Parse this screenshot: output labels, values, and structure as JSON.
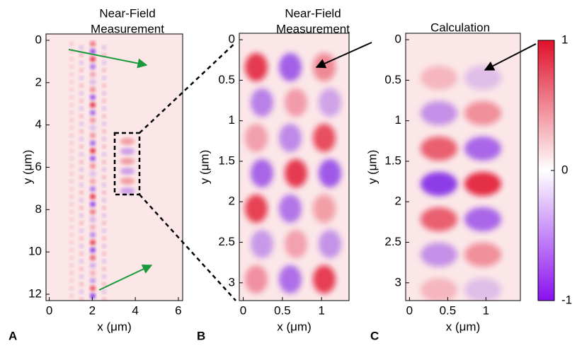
{
  "chart_data": [
    {
      "type": "heatmap",
      "panel": "A",
      "title": [
        "Near-Field",
        "Measurement"
      ],
      "x_label": "x (μm)",
      "y_label": "y (μm)",
      "xlim": [
        -0.15,
        6.2
      ],
      "ylim": [
        -0.3,
        12.3
      ],
      "xticks": [
        0,
        2,
        4,
        6
      ],
      "yticks": [
        0,
        2,
        4,
        6,
        8,
        10,
        12
      ]
    },
    {
      "type": "heatmap",
      "panel": "B",
      "title": [
        "Near-Field",
        "Measurement"
      ],
      "x_label": "x (μm)",
      "y_label": "y (μm)",
      "xlim": [
        -0.05,
        1.35
      ],
      "ylim": [
        -0.08,
        3.22
      ],
      "xticks": [
        0,
        0.5,
        1
      ],
      "yticks": [
        0,
        0.5,
        1,
        1.5,
        2,
        2.5,
        3
      ]
    },
    {
      "type": "heatmap",
      "panel": "C",
      "title": [
        "Calculation"
      ],
      "x_label": "x (μm)",
      "y_label": "y (μm)",
      "xlim": [
        -0.05,
        1.45
      ],
      "ylim": [
        -0.08,
        3.22
      ],
      "xticks": [
        0,
        0.5,
        1
      ],
      "yticks": [
        0,
        0.5,
        1,
        1.5,
        2,
        2.5,
        3
      ],
      "clim": [
        -1,
        1
      ],
      "cticks": [
        -1,
        0,
        1
      ]
    }
  ]
}
